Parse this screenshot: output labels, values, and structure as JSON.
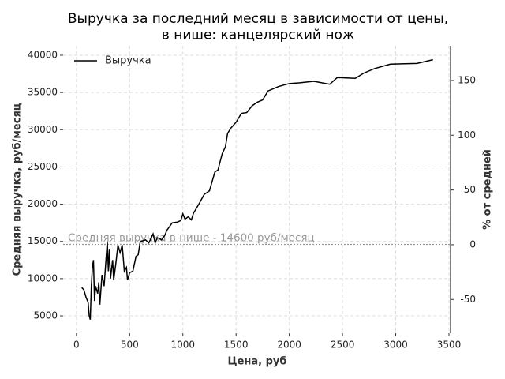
{
  "chart_data": {
    "type": "line",
    "title": "Выручка за последний месяц в зависимости от цены,\nв нише: канцелярский нож",
    "xlabel": "Цена, руб",
    "ylabel": "Средняя выручка, руб/месяц",
    "y2label": "% от средней",
    "x": [
      50,
      70,
      90,
      110,
      120,
      130,
      140,
      150,
      160,
      170,
      180,
      200,
      210,
      220,
      240,
      260,
      280,
      290,
      300,
      310,
      320,
      340,
      350,
      370,
      390,
      410,
      430,
      450,
      470,
      480,
      500,
      530,
      560,
      580,
      600,
      650,
      680,
      720,
      740,
      760,
      800,
      830,
      850,
      900,
      950,
      980,
      1000,
      1020,
      1050,
      1080,
      1100,
      1150,
      1200,
      1250,
      1300,
      1330,
      1370,
      1400,
      1420,
      1450,
      1500,
      1550,
      1600,
      1650,
      1700,
      1750,
      1800,
      1900,
      2000,
      2100,
      2230,
      2380,
      2450,
      2620,
      2700,
      2800,
      2950,
      3200,
      3350
    ],
    "series": [
      {
        "name": "Выручка",
        "color": "#000000",
        "values": [
          8800,
          8500,
          7500,
          6800,
          5000,
          4500,
          9000,
          11500,
          12500,
          7000,
          9000,
          8000,
          9500,
          6500,
          10500,
          9000,
          13000,
          15000,
          11000,
          14000,
          10000,
          12500,
          9800,
          12000,
          14500,
          13500,
          14500,
          11000,
          11500,
          9800,
          10800,
          11000,
          13000,
          13200,
          15000,
          15200,
          14800,
          16000,
          14800,
          15500,
          15200,
          15800,
          16500,
          17500,
          17600,
          17800,
          18700,
          18000,
          18300,
          17900,
          18800,
          20000,
          21300,
          21800,
          24300,
          24600,
          26800,
          27700,
          29500,
          30200,
          31000,
          32200,
          32300,
          33200,
          33700,
          34000,
          35200,
          35800,
          36200,
          36300,
          36500,
          36100,
          37000,
          36900,
          37600,
          38200,
          38800,
          38900,
          39400
        ]
      }
    ],
    "reference_line": {
      "value": 14600,
      "label": "Средняя выручка в нише - 14600 руб/месяц",
      "color": "#999999"
    },
    "xlim": [
      -125,
      3515
    ],
    "xticks": [
      0,
      500,
      1000,
      1500,
      2000,
      2500,
      3000,
      3500
    ],
    "ylim": [
      2670,
      41270
    ],
    "yticks": [
      5000,
      10000,
      15000,
      20000,
      25000,
      30000,
      35000,
      40000
    ],
    "y2lim": [
      -80.8,
      181.7
    ],
    "y2ticks": [
      -50,
      0,
      50,
      100,
      150
    ],
    "grid": true,
    "legend": "upper left"
  }
}
